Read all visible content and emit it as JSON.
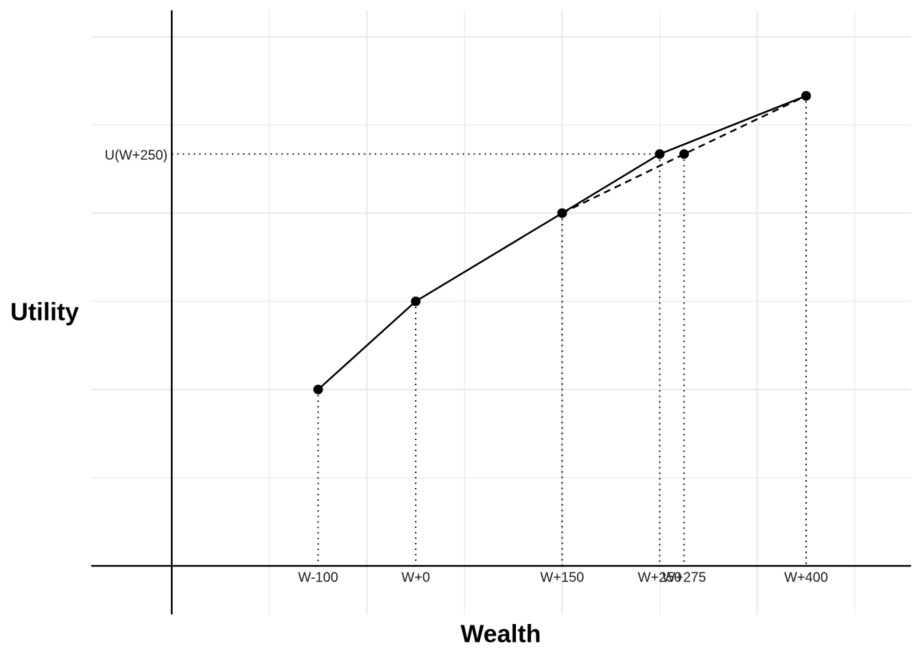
{
  "chart_data": {
    "type": "line",
    "x_label": "Wealth",
    "y_label": "Utility",
    "x": [
      -100,
      0,
      150,
      250,
      400
    ],
    "series": [
      {
        "color": "#000000",
        "style": "solid",
        "values": [
          2,
          3,
          4,
          4.67,
          5.33
        ]
      },
      {
        "color": "#000000",
        "style": "dashed",
        "x": [
          150,
          275,
          400
        ],
        "values": [
          4,
          4.67,
          5.33
        ]
      }
    ],
    "xlim": [
      -332.5,
      507.5
    ],
    "ylim": [
      -0.55,
      6.3
    ],
    "xticks": [
      {
        "value": -100,
        "label": "W-100"
      },
      {
        "value": 0,
        "label": "W+0"
      },
      {
        "value": 150,
        "label": "W+150"
      },
      {
        "value": 250,
        "label": "W+250"
      },
      {
        "value": 275,
        "label": "W+275"
      },
      {
        "value": 400,
        "label": "W+400"
      }
    ],
    "yticks": [
      {
        "value": 4.67,
        "label": "U(W+250)"
      }
    ],
    "xgrid_major": [
      -50,
      150,
      350
    ],
    "xgrid_minor": [
      -150,
      50,
      250,
      450
    ],
    "ygrid_major": [
      0,
      2,
      4,
      6
    ],
    "ygrid_minor": [
      1,
      3,
      5
    ],
    "xaxis_at": 0,
    "yaxis_at": -250,
    "guides": true,
    "grid": true
  }
}
